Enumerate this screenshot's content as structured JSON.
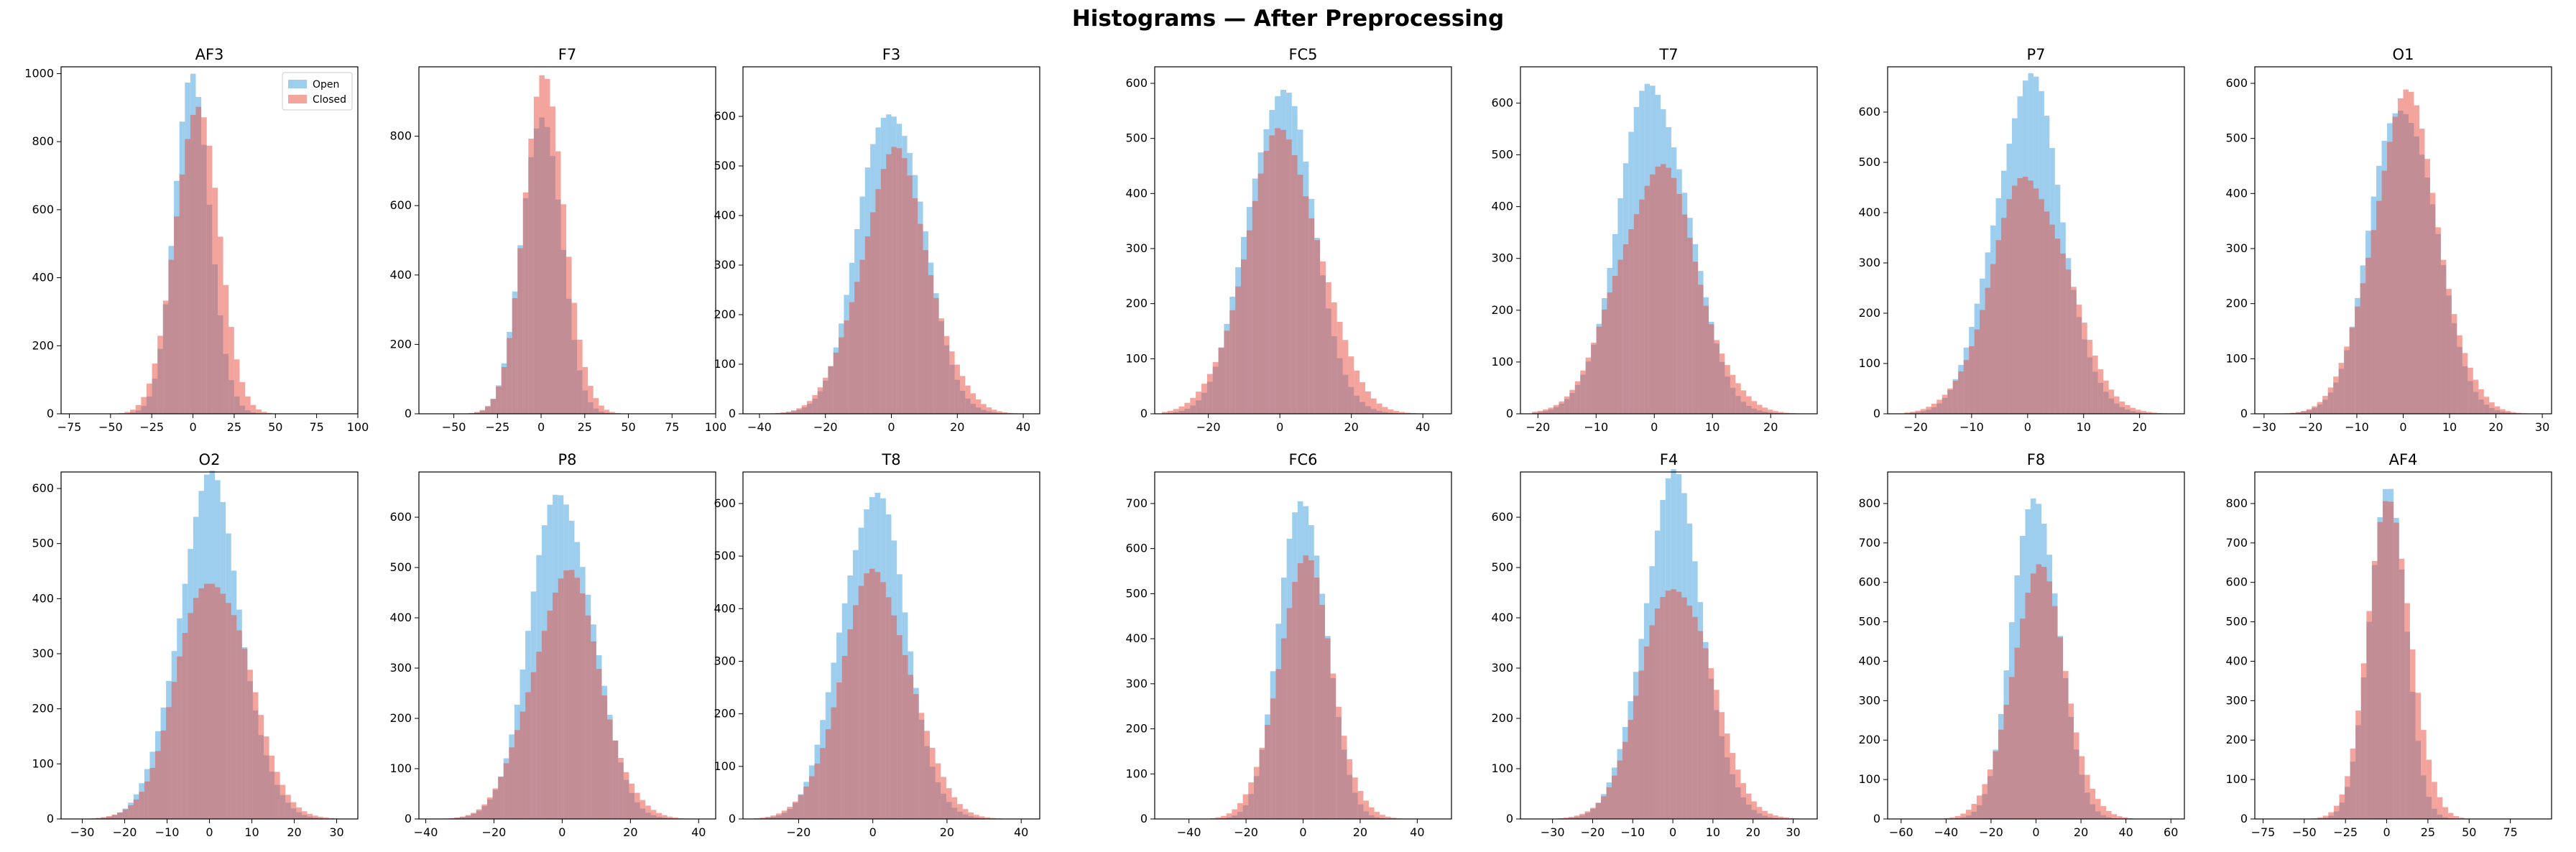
{
  "suptitle": "Histograms — After Preprocessing",
  "colors": {
    "open": "#5dade2",
    "closed": "#e74c3c",
    "open_alpha": 0.6,
    "closed_alpha": 0.5
  },
  "chart_data": [
    {
      "type": "histogram",
      "title": "AF3",
      "legend": {
        "placement": "upper right",
        "entries": [
          "Open",
          "Closed"
        ]
      },
      "xlim": [
        -80,
        100
      ],
      "ylim": [
        0,
        1020
      ],
      "xticks": [
        -75,
        -50,
        -25,
        0,
        25,
        50,
        75,
        100
      ],
      "yticks": [
        0,
        200,
        400,
        600,
        800,
        1000
      ],
      "series": [
        {
          "name": "Open",
          "mean": 0,
          "sd": 11,
          "peak": 970,
          "range": [
            -68,
            98
          ]
        },
        {
          "name": "Closed",
          "mean": 2,
          "sd": 13,
          "peak": 930,
          "range": [
            -68,
            98
          ]
        }
      ]
    },
    {
      "type": "histogram",
      "title": "F7",
      "xlim": [
        -70,
        100
      ],
      "ylim": [
        0,
        1000
      ],
      "xticks": [
        -50,
        -25,
        0,
        25,
        50,
        75,
        100
      ],
      "yticks": [
        0,
        200,
        400,
        600,
        800
      ],
      "series": [
        {
          "name": "Open",
          "mean": 0,
          "sd": 11,
          "peak": 900,
          "range": [
            -60,
            95
          ]
        },
        {
          "name": "Closed",
          "mean": 2,
          "sd": 12,
          "peak": 930,
          "range": [
            -60,
            95
          ]
        }
      ]
    },
    {
      "type": "histogram",
      "title": "F3",
      "xlim": [
        -45,
        45
      ],
      "ylim": [
        0,
        700
      ],
      "xticks": [
        -40,
        -20,
        0,
        20,
        40
      ],
      "yticks": [
        0,
        100,
        200,
        300,
        400,
        500,
        600
      ],
      "series": [
        {
          "name": "Open",
          "mean": 0,
          "sd": 9.5,
          "peak": 640,
          "range": [
            -40,
            40
          ]
        },
        {
          "name": "Closed",
          "mean": 1,
          "sd": 10.5,
          "peak": 510,
          "range": [
            -40,
            40
          ]
        }
      ]
    },
    {
      "type": "histogram",
      "title": "FC5",
      "xlim": [
        -35,
        48
      ],
      "ylim": [
        0,
        630
      ],
      "xticks": [
        -20,
        0,
        20,
        40
      ],
      "yticks": [
        0,
        100,
        200,
        300,
        400,
        500,
        600
      ],
      "series": [
        {
          "name": "Open",
          "mean": 0,
          "sd": 9,
          "peak": 600,
          "range": [
            -33,
            46
          ]
        },
        {
          "name": "Closed",
          "mean": 1,
          "sd": 10.5,
          "peak": 500,
          "range": [
            -33,
            46
          ]
        }
      ]
    },
    {
      "type": "histogram",
      "title": "T7",
      "xlim": [
        -23,
        28
      ],
      "ylim": [
        0,
        670
      ],
      "xticks": [
        -20,
        -10,
        0,
        10,
        20
      ],
      "yticks": [
        0,
        100,
        200,
        300,
        400,
        500,
        600
      ],
      "series": [
        {
          "name": "Open",
          "mean": 0,
          "sd": 6,
          "peak": 640,
          "range": [
            -21,
            25
          ]
        },
        {
          "name": "Closed",
          "mean": 0.5,
          "sd": 6.8,
          "peak": 470,
          "range": [
            -21,
            25
          ]
        }
      ]
    },
    {
      "type": "histogram",
      "title": "P7",
      "xlim": [
        -25,
        28
      ],
      "ylim": [
        0,
        690
      ],
      "xticks": [
        -20,
        -10,
        0,
        10,
        20
      ],
      "yticks": [
        0,
        100,
        200,
        300,
        400,
        500,
        600
      ],
      "series": [
        {
          "name": "Open",
          "mean": 0,
          "sd": 6,
          "peak": 660,
          "range": [
            -22,
            26
          ]
        },
        {
          "name": "Closed",
          "mean": 0.5,
          "sd": 6.8,
          "peak": 470,
          "range": [
            -22,
            26
          ]
        }
      ]
    },
    {
      "type": "histogram",
      "title": "O1",
      "xlim": [
        -32,
        32
      ],
      "ylim": [
        0,
        630
      ],
      "xticks": [
        -30,
        -20,
        -10,
        0,
        10,
        20,
        30
      ],
      "yticks": [
        0,
        100,
        200,
        300,
        400,
        500,
        600
      ],
      "series": [
        {
          "name": "Open",
          "mean": 0,
          "sd": 6.8,
          "peak": 580,
          "range": [
            -29,
            29
          ]
        },
        {
          "name": "Closed",
          "mean": 0.5,
          "sd": 7.2,
          "peak": 560,
          "range": [
            -29,
            29
          ]
        }
      ]
    },
    {
      "type": "histogram",
      "title": "O2",
      "xlim": [
        -35,
        35
      ],
      "ylim": [
        0,
        630
      ],
      "xticks": [
        -30,
        -20,
        -10,
        0,
        10,
        20,
        30
      ],
      "yticks": [
        0,
        100,
        200,
        300,
        400,
        500,
        600
      ],
      "series": [
        {
          "name": "Open",
          "mean": 0,
          "sd": 7.5,
          "peak": 600,
          "range": [
            -32,
            32
          ]
        },
        {
          "name": "Closed",
          "mean": 1,
          "sd": 8.2,
          "peak": 450,
          "range": [
            -32,
            32
          ]
        }
      ]
    },
    {
      "type": "histogram",
      "title": "P8",
      "xlim": [
        -42,
        45
      ],
      "ylim": [
        0,
        690
      ],
      "xticks": [
        -40,
        -20,
        0,
        20,
        40
      ],
      "yticks": [
        0,
        100,
        200,
        300,
        400,
        500,
        600
      ],
      "series": [
        {
          "name": "Open",
          "mean": 0,
          "sd": 9,
          "peak": 660,
          "range": [
            -38,
            42
          ]
        },
        {
          "name": "Closed",
          "mean": 1,
          "sd": 10,
          "peak": 480,
          "range": [
            -38,
            42
          ]
        }
      ]
    },
    {
      "type": "histogram",
      "title": "T8",
      "xlim": [
        -35,
        45
      ],
      "ylim": [
        0,
        660
      ],
      "xticks": [
        -20,
        0,
        20,
        40
      ],
      "yticks": [
        0,
        100,
        200,
        300,
        400,
        500,
        600
      ],
      "series": [
        {
          "name": "Open",
          "mean": 0,
          "sd": 8.5,
          "peak": 630,
          "range": [
            -32,
            42
          ]
        },
        {
          "name": "Closed",
          "mean": 1,
          "sd": 9.5,
          "peak": 460,
          "range": [
            -32,
            42
          ]
        }
      ]
    },
    {
      "type": "histogram",
      "title": "FC6",
      "xlim": [
        -52,
        52
      ],
      "ylim": [
        0,
        770
      ],
      "xticks": [
        -40,
        -20,
        0,
        20,
        40
      ],
      "yticks": [
        0,
        100,
        200,
        300,
        400,
        500,
        600,
        700
      ],
      "series": [
        {
          "name": "Open",
          "mean": 0,
          "sd": 8,
          "peak": 740,
          "range": [
            -48,
            48
          ]
        },
        {
          "name": "Closed",
          "mean": 0.5,
          "sd": 9.5,
          "peak": 560,
          "range": [
            -48,
            48
          ]
        }
      ]
    },
    {
      "type": "histogram",
      "title": "F4",
      "xlim": [
        -38,
        36
      ],
      "ylim": [
        0,
        690
      ],
      "xticks": [
        -30,
        -20,
        -10,
        0,
        10,
        20,
        30
      ],
      "yticks": [
        0,
        100,
        200,
        300,
        400,
        500,
        600
      ],
      "series": [
        {
          "name": "Open",
          "mean": 0,
          "sd": 7.5,
          "peak": 660,
          "range": [
            -34,
            33
          ]
        },
        {
          "name": "Closed",
          "mean": 1,
          "sd": 8.5,
          "peak": 480,
          "range": [
            -34,
            33
          ]
        }
      ]
    },
    {
      "type": "histogram",
      "title": "F8",
      "xlim": [
        -66,
        66
      ],
      "ylim": [
        0,
        880
      ],
      "xticks": [
        -60,
        -40,
        -20,
        0,
        20,
        40,
        60
      ],
      "yticks": [
        0,
        100,
        200,
        300,
        400,
        500,
        600,
        700,
        800
      ],
      "series": [
        {
          "name": "Open",
          "mean": 0,
          "sd": 10,
          "peak": 850,
          "range": [
            -60,
            60
          ]
        },
        {
          "name": "Closed",
          "mean": 1,
          "sd": 12,
          "peak": 620,
          "range": [
            -60,
            60
          ]
        }
      ]
    },
    {
      "type": "histogram",
      "title": "AF4",
      "xlim": [
        -80,
        100
      ],
      "ylim": [
        0,
        880
      ],
      "xticks": [
        -75,
        -50,
        -25,
        0,
        25,
        50,
        75
      ],
      "yticks": [
        0,
        100,
        200,
        300,
        400,
        500,
        600,
        700,
        800
      ],
      "series": [
        {
          "name": "Open",
          "mean": 0,
          "sd": 11,
          "peak": 850,
          "range": [
            -75,
            90
          ]
        },
        {
          "name": "Closed",
          "mean": 2,
          "sd": 13,
          "peak": 800,
          "range": [
            -75,
            90
          ]
        }
      ]
    }
  ]
}
